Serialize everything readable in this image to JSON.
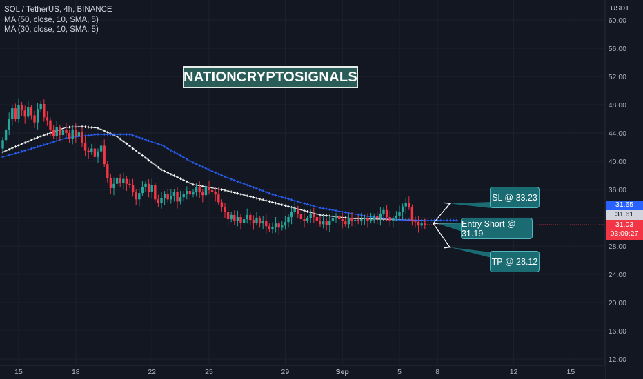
{
  "legend": {
    "symbol": "SOL / TetherUS, 4h, BINANCE",
    "ma50": "MA (50, close, 10, SMA, 5)",
    "ma30": "MA (30, close, 10, SMA, 5)"
  },
  "watermark": "NATIONCRYPTOSIGNALS",
  "annotations": {
    "sl": "SL @ 33.23",
    "entry": "Entry Short @ 31.19",
    "tp": "TP @ 28.12"
  },
  "price_axis": {
    "currency": "USDT",
    "ma30_value": "31.65",
    "ma50_value": "31.61",
    "last_price": "31.03",
    "countdown": "03:09:27"
  },
  "colors": {
    "background": "#131722",
    "up": "#26a69a",
    "down": "#f23645",
    "ma30": "#2962ff",
    "ma50": "#ffffff",
    "annotation": "#1b6b73"
  },
  "chart_data": {
    "type": "candlestick",
    "title": "SOL / TetherUS, 4h, BINANCE",
    "ylim": [
      12,
      62
    ],
    "yticks": [
      "60.00",
      "56.00",
      "52.00",
      "48.00",
      "44.00",
      "40.00",
      "36.00",
      "32.00",
      "28.00",
      "24.00",
      "20.00",
      "16.00",
      "12.00"
    ],
    "xticks": [
      "15",
      "18",
      "22",
      "25",
      "29",
      "Sep",
      "5",
      "8",
      "12",
      "15"
    ],
    "xtick_index": [
      5,
      23,
      47,
      65,
      89,
      107,
      125,
      137,
      161,
      179
    ],
    "close": [
      43,
      44.5,
      46,
      47.5,
      46,
      48,
      47.2,
      46.3,
      47.6,
      46.5,
      45.5,
      47.4,
      48.1,
      46.2,
      45.8,
      44.5,
      43.6,
      44.8,
      43.7,
      44.5,
      44,
      43.2,
      44.5,
      43.6,
      44.1,
      42.6,
      41.5,
      41.3,
      41.8,
      40.6,
      41.4,
      42.2,
      39.6,
      37.6,
      36.2,
      36.8,
      37.6,
      36.9,
      37.5,
      36.8,
      36.6,
      35.6,
      34.6,
      35.5,
      36.3,
      36.8,
      35.7,
      36.6,
      34.6,
      34.1,
      34.8,
      35.4,
      34.6,
      35.1,
      35.7,
      34.3,
      34.9,
      35.4,
      35.8,
      35.3,
      35.6,
      36.3,
      35.6,
      35.2,
      36.3,
      35.9,
      35.7,
      35.3,
      34.2,
      33.5,
      32.8,
      31.8,
      32.4,
      31.6,
      32.1,
      31.3,
      31.8,
      32.4,
      31.7,
      31.3,
      31.9,
      31.2,
      31.6,
      30.8,
      30.4,
      30.7,
      31.2,
      30.6,
      30.9,
      31.4,
      32.1,
      32.8,
      33.3,
      32.5,
      31.8,
      31.6,
      31.9,
      32.5,
      32.1,
      31.6,
      31.1,
      31.5,
      31,
      31.6,
      31.9,
      32.3,
      31.8,
      31.5,
      31.1,
      31.9,
      31.6,
      31.7,
      31.5,
      31.8,
      32,
      31.6,
      31.8,
      32.2,
      31.9,
      32.6,
      33.1,
      32.1,
      31.6,
      31.9,
      32.3,
      32.8,
      33.6,
      34.1,
      33.5,
      31.5,
      31.4,
      30.9,
      31.2,
      31.03
    ],
    "series": [
      {
        "name": "MA (50, close, 10, SMA, 5)",
        "x": [
          0,
          10,
          20,
          25,
          30,
          36,
          50,
          60,
          70,
          85,
          100,
          110,
          120,
          133
        ],
        "values": [
          41.3,
          43.2,
          44.8,
          44.9,
          44.7,
          43.5,
          38.8,
          36.7,
          35.9,
          34.2,
          32.4,
          31.9,
          31.8,
          31.61
        ]
      },
      {
        "name": "MA (30, close, 10, SMA, 5)",
        "x": [
          0,
          10,
          20,
          30,
          40,
          50,
          60,
          70,
          85,
          100,
          115,
          125,
          133
        ],
        "values": [
          40.6,
          41.9,
          43.3,
          43.8,
          43.8,
          42.3,
          39.8,
          37.8,
          35.3,
          33.4,
          32.2,
          31.7,
          31.65
        ]
      }
    ],
    "annotations": [
      {
        "label": "SL @ 33.23",
        "y": 33.23
      },
      {
        "label": "Entry Short @ 31.19",
        "y": 31.19
      },
      {
        "label": "TP @ 28.12",
        "y": 28.12
      }
    ]
  }
}
